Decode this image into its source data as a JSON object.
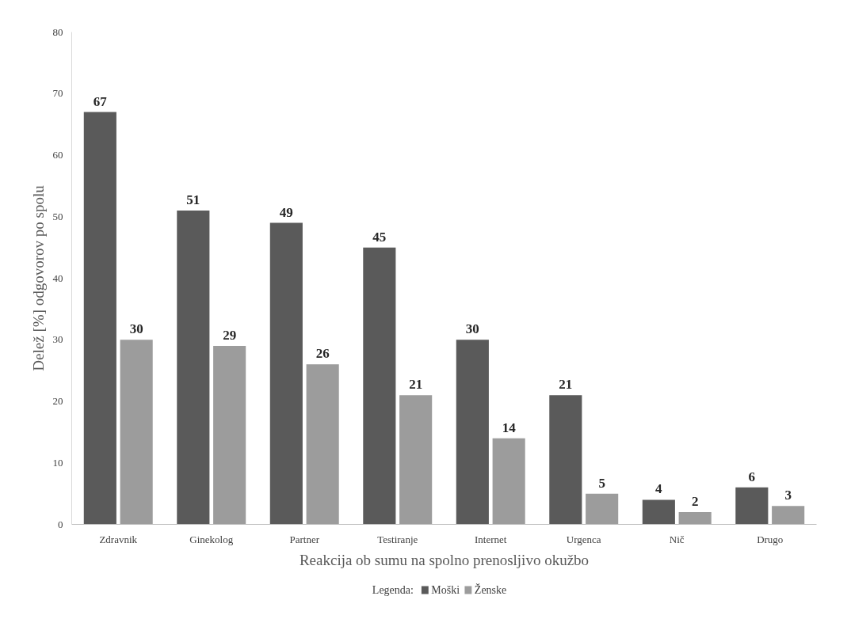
{
  "chart_data": {
    "type": "bar",
    "xlabel": "Reakcija ob sumu na spolno prenosljivo okužbo",
    "ylabel": "Delež [%] odgovorov po spolu",
    "legend_title": "Legenda:",
    "categories": [
      "Zdravnik",
      "Ginekolog",
      "Partner",
      "Testiranje",
      "Internet",
      "Urgenca",
      "Nič",
      "Drugo"
    ],
    "series": [
      {
        "name": "Moški",
        "color": "#5a5a5a",
        "values": [
          67,
          51,
          49,
          45,
          30,
          21,
          4,
          6
        ]
      },
      {
        "name": "Ženske",
        "color": "#9c9c9c",
        "values": [
          30,
          29,
          26,
          21,
          14,
          5,
          2,
          3
        ]
      }
    ],
    "ylim": [
      0,
      80
    ],
    "yticks": [
      0,
      10,
      20,
      30,
      40,
      50,
      60,
      70,
      80
    ],
    "grid": false,
    "legend": "bottom",
    "data_labels": true
  }
}
